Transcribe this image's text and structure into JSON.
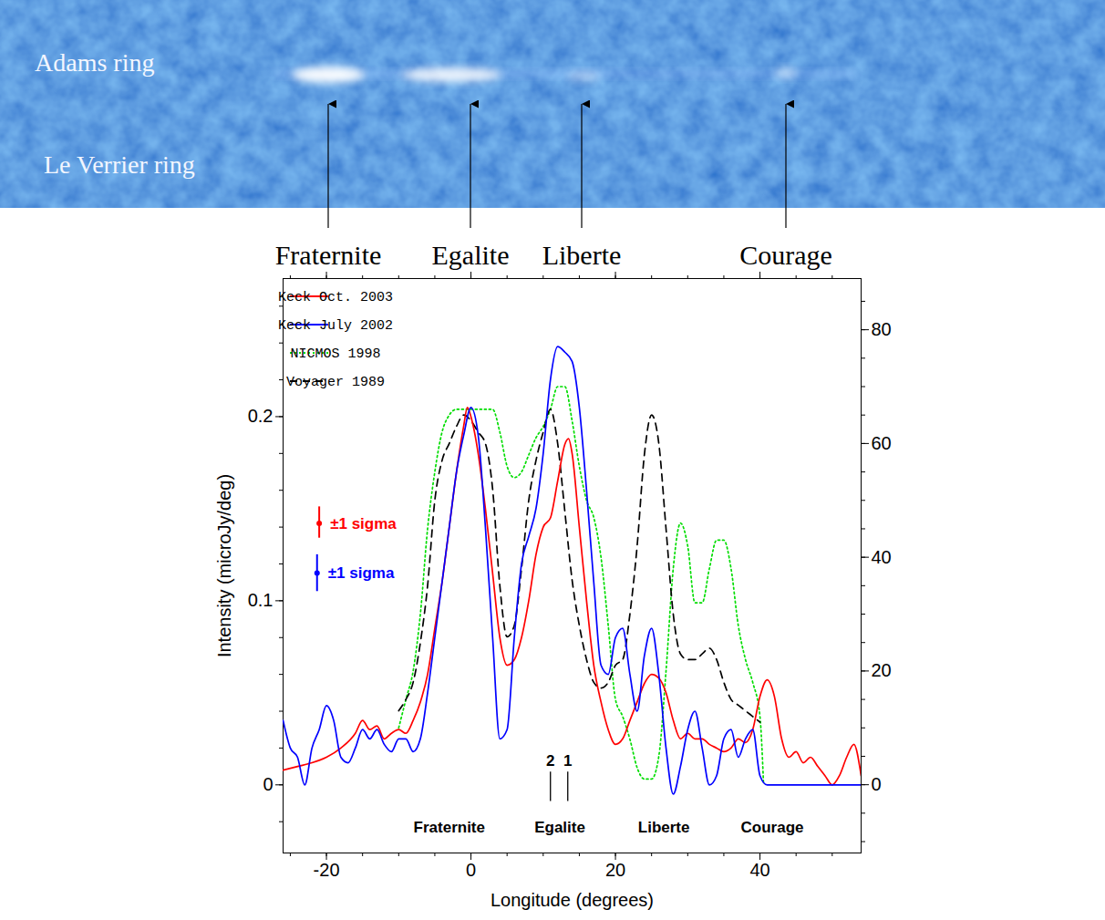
{
  "image": {
    "ring_labels": [
      "Adams ring",
      "Le Verrier ring"
    ],
    "feature_labels": [
      "Fraternite",
      "Egalite",
      "Liberte",
      "Courage"
    ]
  },
  "chart_data": {
    "type": "line",
    "x_label": "Longitude (degrees)",
    "y_label": "Intensity (microJy/deg)",
    "xlim": [
      -26,
      54
    ],
    "xticks": [
      -20,
      0,
      20,
      40
    ],
    "ylim": [
      -0.037,
      0.275
    ],
    "yticks": [
      0,
      0.1,
      0.2
    ],
    "y2lim": [
      -12,
      89
    ],
    "y2ticks": [
      0,
      20,
      40,
      60,
      80
    ],
    "legend": "top-left",
    "series": [
      {
        "name": "Keck Oct. 2003",
        "color": "#ff0000",
        "line_style": "solid",
        "x": [
          -26,
          -24,
          -22,
          -20,
          -18,
          -16,
          -15,
          -14,
          -13,
          -12,
          -11,
          -10,
          -9,
          -8,
          -7,
          -6,
          -5,
          -4,
          -3,
          -2,
          -1,
          -0.5,
          0,
          1,
          2,
          3,
          4,
          5,
          6,
          7,
          8,
          9,
          10,
          11,
          12,
          13,
          13.5,
          14,
          15,
          16,
          17,
          18,
          19,
          20,
          21,
          22,
          23,
          24,
          25,
          26,
          27,
          28,
          29,
          30,
          31,
          32,
          33,
          34,
          35,
          36,
          37,
          38,
          39,
          40,
          41,
          42,
          43,
          44,
          45,
          46,
          47,
          48,
          49,
          50,
          51,
          52,
          53,
          54
        ],
        "values": [
          0.008,
          0.01,
          0.012,
          0.015,
          0.02,
          0.028,
          0.035,
          0.03,
          0.032,
          0.025,
          0.028,
          0.03,
          0.028,
          0.035,
          0.045,
          0.06,
          0.085,
          0.11,
          0.14,
          0.17,
          0.195,
          0.205,
          0.2,
          0.18,
          0.15,
          0.115,
          0.08,
          0.065,
          0.068,
          0.08,
          0.1,
          0.125,
          0.14,
          0.145,
          0.165,
          0.185,
          0.188,
          0.18,
          0.14,
          0.1,
          0.065,
          0.045,
          0.03,
          0.022,
          0.025,
          0.035,
          0.045,
          0.055,
          0.06,
          0.058,
          0.05,
          0.035,
          0.025,
          0.028,
          0.025,
          0.025,
          0.022,
          0.02,
          0.018,
          0.02,
          0.025,
          0.023,
          0.03,
          0.048,
          0.057,
          0.048,
          0.025,
          0.015,
          0.018,
          0.012,
          0.015,
          0.01,
          0.005,
          0.0,
          0.005,
          0.015,
          0.022,
          0.005
        ]
      },
      {
        "name": "Keck July 2002",
        "color": "#0000ff",
        "line_style": "solid",
        "x": [
          -26,
          -25,
          -24,
          -23,
          -22,
          -21,
          -20,
          -19,
          -18,
          -17,
          -16,
          -15,
          -14,
          -13,
          -12,
          -11,
          -10,
          -9,
          -8,
          -7,
          -6,
          -5,
          -4,
          -3,
          -2,
          -1,
          0,
          1,
          2,
          3,
          4,
          5,
          6,
          7,
          8,
          9,
          10,
          11,
          12,
          13,
          14,
          15,
          16,
          17,
          18,
          19,
          20,
          21,
          22,
          23,
          24,
          25,
          26,
          27,
          28,
          29,
          30,
          31,
          32,
          33,
          34,
          35,
          36,
          37,
          38,
          39,
          40,
          41,
          54
        ],
        "values": [
          0.035,
          0.02,
          0.015,
          0.0,
          0.02,
          0.03,
          0.043,
          0.035,
          0.015,
          0.012,
          0.02,
          0.03,
          0.025,
          0.03,
          0.022,
          0.018,
          0.025,
          0.025,
          0.018,
          0.025,
          0.05,
          0.08,
          0.11,
          0.14,
          0.17,
          0.19,
          0.205,
          0.19,
          0.14,
          0.08,
          0.025,
          0.03,
          0.08,
          0.12,
          0.135,
          0.15,
          0.18,
          0.22,
          0.238,
          0.235,
          0.23,
          0.205,
          0.16,
          0.11,
          0.065,
          0.06,
          0.08,
          0.085,
          0.06,
          0.04,
          0.07,
          0.085,
          0.06,
          0.02,
          -0.005,
          0.01,
          0.03,
          0.04,
          0.02,
          0.0,
          0.005,
          0.025,
          0.03,
          0.015,
          0.025,
          0.03,
          0.005,
          0.0,
          0.0
        ]
      },
      {
        "name": "NICMOS 1998",
        "color": "#00dd00",
        "line_style": "dotted",
        "axis": "y2",
        "x": [
          -10,
          -9,
          -8,
          -7,
          -6,
          -5,
          -4,
          -3,
          -2,
          -1,
          0,
          1,
          2,
          3,
          4,
          5,
          6,
          7,
          8,
          9,
          10,
          11,
          12,
          13,
          14,
          15,
          16,
          17,
          18,
          19,
          20,
          21,
          22,
          23,
          24,
          25,
          26,
          27,
          28,
          29,
          30,
          31,
          32,
          33,
          34,
          35,
          36,
          37,
          38,
          39,
          40,
          40.5
        ],
        "values": [
          10,
          15,
          20,
          30,
          45,
          55,
          62,
          65,
          66,
          66,
          66,
          66,
          66,
          66,
          62,
          56,
          54,
          55,
          58,
          61,
          63,
          66,
          70,
          70,
          64,
          56,
          50,
          47,
          40,
          28,
          15,
          12,
          8,
          3,
          1,
          1,
          5,
          20,
          38,
          46,
          42,
          32,
          32,
          38,
          43,
          43,
          38,
          28,
          22,
          18,
          12,
          0
        ]
      },
      {
        "name": "Voyager 1989",
        "color": "#000000",
        "line_style": "dashed",
        "axis": "y2",
        "x": [
          -10,
          -9,
          -8,
          -7,
          -6,
          -5,
          -4,
          -3,
          -2,
          -1,
          0,
          1,
          2,
          3,
          4,
          5,
          6,
          7,
          8,
          9,
          10,
          11,
          12,
          13,
          14,
          15,
          16,
          17,
          18,
          19,
          20,
          21,
          22,
          23,
          24,
          25,
          26,
          27,
          28,
          29,
          30,
          31,
          32,
          33,
          34,
          35,
          36,
          37,
          38,
          39,
          40
        ],
        "values": [
          13,
          15,
          18,
          25,
          35,
          50,
          57,
          60,
          63,
          65,
          64,
          62,
          60,
          52,
          35,
          26,
          28,
          38,
          50,
          57,
          62,
          66,
          60,
          48,
          36,
          28,
          22,
          18,
          17,
          18,
          21,
          22,
          30,
          42,
          58,
          65,
          60,
          45,
          30,
          23,
          22,
          22,
          23,
          24,
          22,
          18,
          15,
          14,
          13,
          12,
          11
        ]
      }
    ],
    "error_bars": [
      {
        "series": "Keck Oct. 2003",
        "label": "±1 sigma",
        "x": -21,
        "y": 0.142,
        "low": 0.134,
        "high": 0.151
      },
      {
        "series": "Keck July 2002",
        "label": "±1 sigma",
        "x": -21.3,
        "y": 0.115,
        "low": 0.105,
        "high": 0.125
      }
    ],
    "markers": [
      {
        "label": "2",
        "x": 11,
        "y1": -0.009,
        "y2": 0.007
      },
      {
        "label": "1",
        "x": 13.4,
        "y1": -0.009,
        "y2": 0.007
      }
    ],
    "region_labels": [
      {
        "text": "Fraternite",
        "x": -3,
        "y": -0.023
      },
      {
        "text": "Egalite",
        "x": 12.3,
        "y": -0.023
      },
      {
        "text": "Liberte",
        "x": 26.7,
        "y": -0.023
      },
      {
        "text": "Courage",
        "x": 41.7,
        "y": -0.023
      }
    ]
  }
}
